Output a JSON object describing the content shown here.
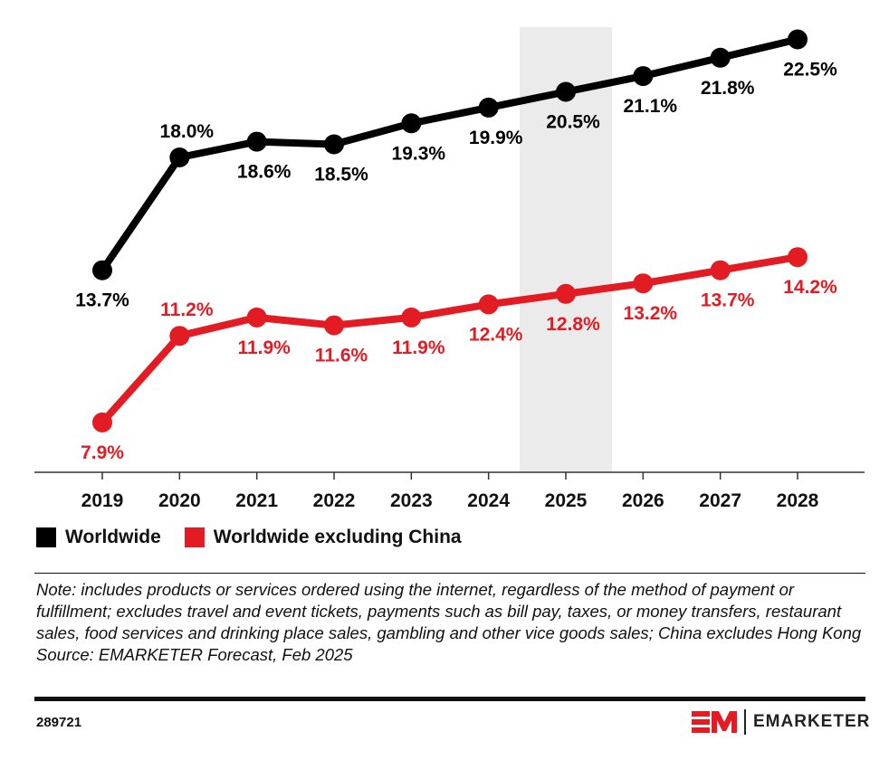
{
  "chart_data": {
    "type": "line",
    "title": "",
    "xlabel": "",
    "ylabel": "",
    "ylim": [
      6,
      24
    ],
    "grid": false,
    "highlight_category": "2025",
    "categories": [
      "2019",
      "2020",
      "2021",
      "2022",
      "2023",
      "2024",
      "2025",
      "2026",
      "2027",
      "2028"
    ],
    "series": [
      {
        "name": "Worldwide",
        "color": "#000000",
        "values": [
          13.7,
          18.0,
          18.6,
          18.5,
          19.3,
          19.9,
          20.5,
          21.1,
          21.8,
          22.5
        ],
        "labels": [
          "13.7%",
          "18.0%",
          "18.6%",
          "18.5%",
          "19.3%",
          "19.9%",
          "20.5%",
          "21.1%",
          "21.8%",
          "22.5%"
        ],
        "label_side": [
          "below",
          "above",
          "below",
          "below",
          "below",
          "below",
          "below",
          "below",
          "below",
          "below"
        ]
      },
      {
        "name": "Worldwide excluding China",
        "color": "#e31b23",
        "values": [
          7.9,
          11.2,
          11.9,
          11.6,
          11.9,
          12.4,
          12.8,
          13.2,
          13.7,
          14.2
        ],
        "labels": [
          "7.9%",
          "11.2%",
          "11.9%",
          "11.6%",
          "11.9%",
          "12.4%",
          "12.8%",
          "13.2%",
          "13.7%",
          "14.2%"
        ],
        "label_side": [
          "below",
          "above",
          "below",
          "below",
          "below",
          "below",
          "below",
          "below",
          "below",
          "below"
        ]
      }
    ],
    "legend": "bottom-left"
  },
  "note": "Note: includes products or services ordered using the internet, regardless of the method of payment or fulfillment; excludes travel and event tickets, payments such as bill pay, taxes, or money transfers, restaurant sales, food services and drinking place sales, gambling and other vice goods sales; China excludes Hong Kong",
  "source": "Source: EMARKETER Forecast, Feb 2025",
  "chart_id": "289721",
  "brand": {
    "mark": "EM",
    "name": "EMARKETER",
    "accent": "#e31b23"
  }
}
